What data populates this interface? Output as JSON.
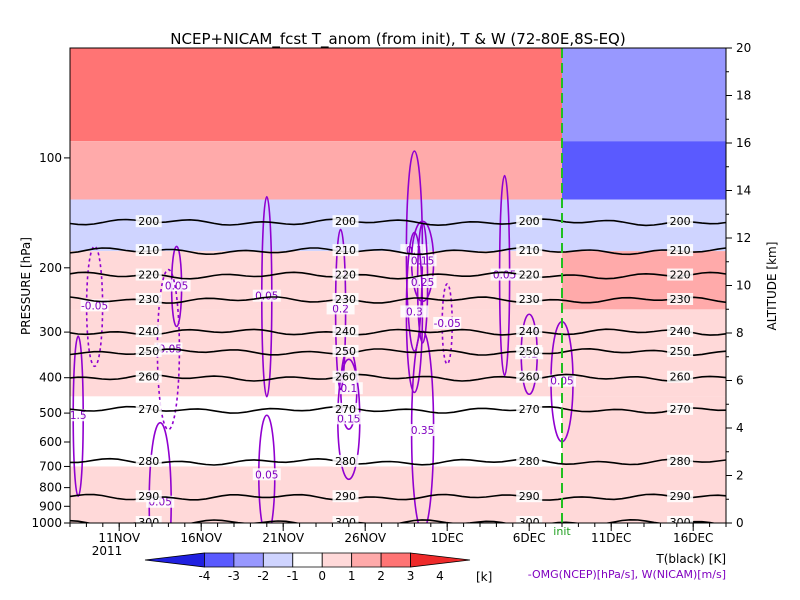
{
  "chart_data": {
    "type": "heatmap",
    "title": "NCEP+NICAM_fcst T_anom (from init), T & W  (72-80E,8S-EQ)",
    "ylabel_left": "PRESSURE [hPa]",
    "ylabel_right": "ALTITUDE [km]",
    "year_label": "2011",
    "init_label": "init",
    "x_days": [
      0,
      40
    ],
    "x_tick_labels": [
      "11NOV",
      "16NOV",
      "21NOV",
      "26NOV",
      "1DEC",
      "6DEC",
      "11DEC",
      "16DEC"
    ],
    "x_tick_days": [
      3,
      8,
      13,
      18,
      23,
      28,
      33,
      38
    ],
    "init_day": 30,
    "pressure_ticks": [
      100,
      200,
      300,
      400,
      500,
      600,
      700,
      800,
      900,
      1000
    ],
    "pressure_range": [
      1000,
      50
    ],
    "altitude_ticks": [
      0,
      2,
      4,
      6,
      8,
      10,
      12,
      14,
      16,
      18,
      20
    ],
    "altitude_range": [
      0,
      20
    ],
    "colorbar_ticks": [
      -4,
      -3,
      -2,
      -1,
      0,
      1,
      2,
      3,
      4
    ],
    "colorbar_unit": "[k]",
    "colorbar_colors": [
      "#2020e0",
      "#5a5aff",
      "#9898ff",
      "#cfd4ff",
      "#ffffff",
      "#ffd9d9",
      "#ffaaaa",
      "#ff7474",
      "#ee2a2a"
    ],
    "legend_t": "T(black) [K]",
    "legend_w": "-OMG(NCEP)[hPa/s], W(NICAM)[m/s]",
    "anomaly_bands": [
      {
        "p_top": 50,
        "p_bot": 90,
        "pre": 2.5,
        "post": -2
      },
      {
        "p_top": 90,
        "p_bot": 130,
        "pre": 1.5,
        "post": -3
      },
      {
        "p_top": 130,
        "p_bot": 180,
        "pre": -1.5,
        "post": -1
      },
      {
        "p_top": 180,
        "p_bot": 260,
        "pre": 0.5,
        "post": 2
      },
      {
        "p_top": 260,
        "p_bot": 450,
        "pre": 0.5,
        "post": 1
      },
      {
        "p_top": 450,
        "p_bot": 700,
        "pre": -0.5,
        "post": 1
      },
      {
        "p_top": 700,
        "p_bot": 1000,
        "pre": 0.5,
        "post": 1
      }
    ],
    "temperature_contours": [
      {
        "label": "200",
        "p": 150
      },
      {
        "label": "210",
        "p": 180
      },
      {
        "label": "220",
        "p": 210
      },
      {
        "label": "230",
        "p": 245
      },
      {
        "label": "240",
        "p": 300
      },
      {
        "label": "250",
        "p": 340
      },
      {
        "label": "260",
        "p": 400
      },
      {
        "label": "270",
        "p": 490
      },
      {
        "label": "280",
        "p": 680
      },
      {
        "label": "290",
        "p": 850
      },
      {
        "label": "300",
        "p": 1000
      }
    ],
    "w_labels": [
      {
        "text": "0.05",
        "day": 6.5,
        "p": 225
      },
      {
        "text": "-0.05",
        "day": 1.5,
        "p": 255
      },
      {
        "text": "-0.05",
        "day": 6,
        "p": 335
      },
      {
        "text": "0.05",
        "day": 12,
        "p": 240
      },
      {
        "text": "0.1",
        "day": 17,
        "p": 430
      },
      {
        "text": "0.15",
        "day": 17,
        "p": 520
      },
      {
        "text": "0.2",
        "day": 16.5,
        "p": 260
      },
      {
        "text": "0.1",
        "day": 21,
        "p": 180
      },
      {
        "text": "0.15",
        "day": 21.5,
        "p": 192
      },
      {
        "text": "0.25",
        "day": 21.5,
        "p": 220
      },
      {
        "text": "0.3",
        "day": 21,
        "p": 265
      },
      {
        "text": "0.35",
        "day": 21.5,
        "p": 560
      },
      {
        "text": "-0.05",
        "day": 23,
        "p": 285
      },
      {
        "text": "0.05",
        "day": 12,
        "p": 740
      },
      {
        "text": "0.05",
        "day": 5.5,
        "p": 880
      },
      {
        "text": "0.05",
        "day": 26.5,
        "p": 210
      },
      {
        "text": "0.1",
        "day": 28,
        "p": 345
      },
      {
        "text": "0.05",
        "day": 30,
        "p": 410
      },
      {
        "text": "1.5",
        "day": 0.5,
        "p": 510
      }
    ]
  }
}
